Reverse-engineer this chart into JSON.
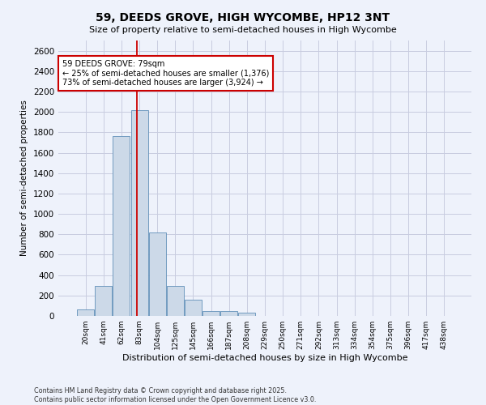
{
  "title": "59, DEEDS GROVE, HIGH WYCOMBE, HP12 3NT",
  "subtitle": "Size of property relative to semi-detached houses in High Wycombe",
  "xlabel": "Distribution of semi-detached houses by size in High Wycombe",
  "ylabel": "Number of semi-detached properties",
  "categories": [
    "20sqm",
    "41sqm",
    "62sqm",
    "83sqm",
    "104sqm",
    "125sqm",
    "145sqm",
    "166sqm",
    "187sqm",
    "208sqm",
    "229sqm",
    "250sqm",
    "271sqm",
    "292sqm",
    "313sqm",
    "334sqm",
    "354sqm",
    "375sqm",
    "396sqm",
    "417sqm",
    "438sqm"
  ],
  "values": [
    60,
    295,
    1760,
    2020,
    820,
    290,
    155,
    50,
    45,
    32,
    0,
    0,
    0,
    0,
    0,
    0,
    0,
    0,
    0,
    0,
    0
  ],
  "bar_color": "#ccd9e8",
  "bar_edge_color": "#6090b8",
  "grid_color": "#c8cce0",
  "background_color": "#eef2fb",
  "red_line_x": 2.85,
  "annotation_text_line1": "59 DEEDS GROVE: 79sqm",
  "annotation_text_line2": "← 25% of semi-detached houses are smaller (1,376)",
  "annotation_text_line3": "73% of semi-detached houses are larger (3,924) →",
  "annotation_box_color": "#ffffff",
  "annotation_box_edge": "#cc0000",
  "red_line_color": "#cc0000",
  "ylim": [
    0,
    2700
  ],
  "yticks": [
    0,
    200,
    400,
    600,
    800,
    1000,
    1200,
    1400,
    1600,
    1800,
    2000,
    2200,
    2400,
    2600
  ],
  "footer_line1": "Contains HM Land Registry data © Crown copyright and database right 2025.",
  "footer_line2": "Contains public sector information licensed under the Open Government Licence v3.0."
}
